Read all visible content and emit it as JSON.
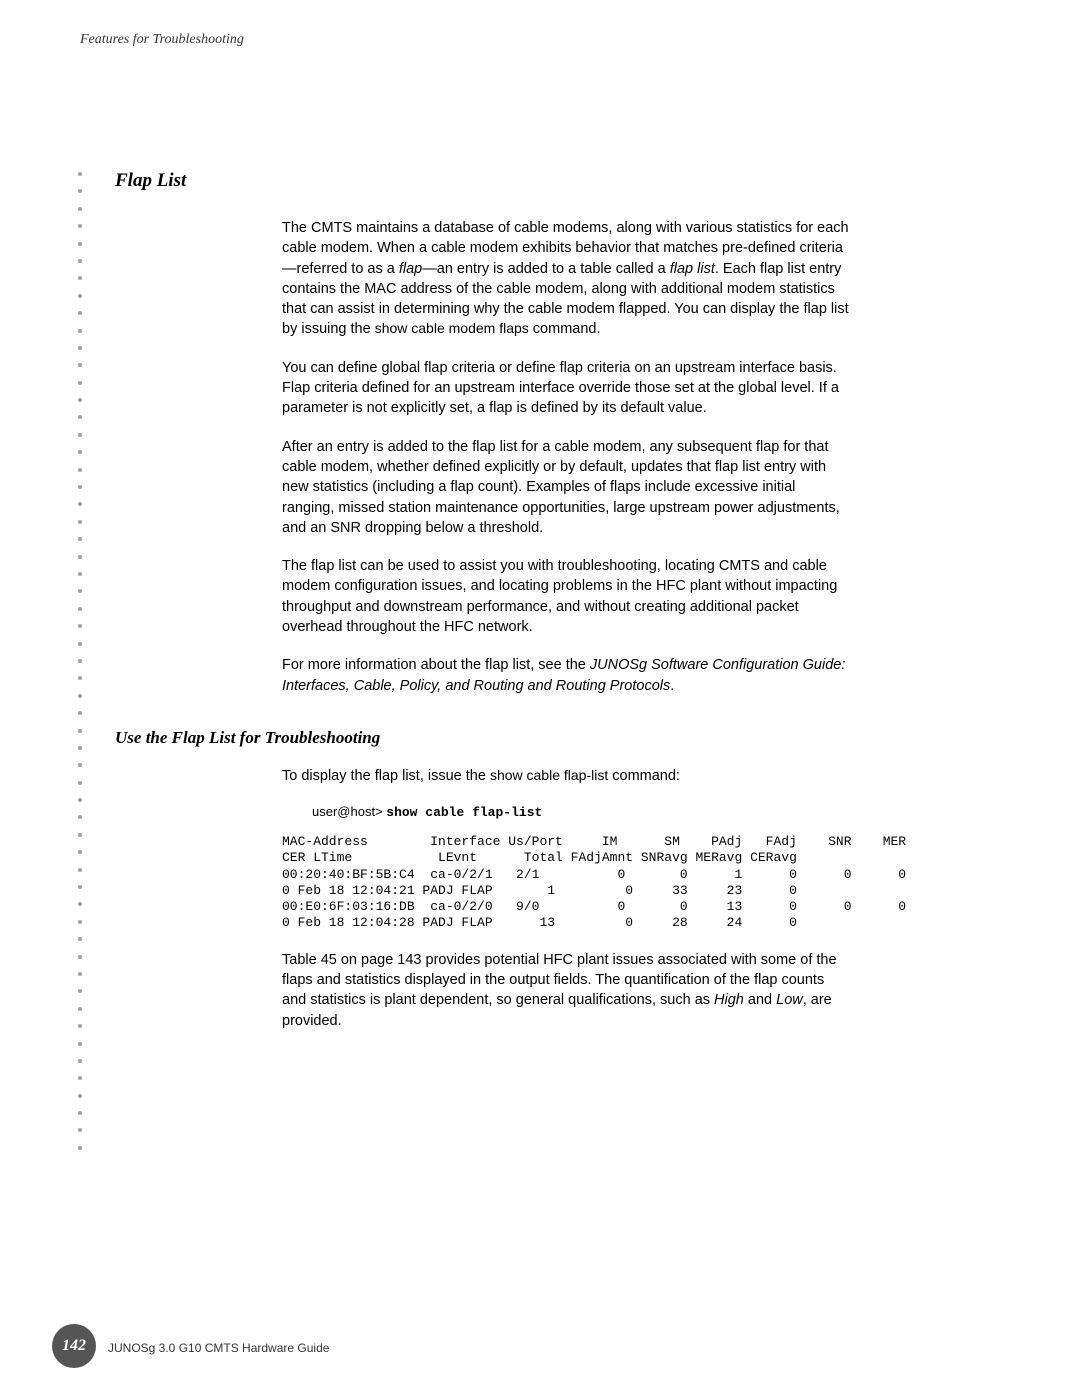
{
  "header": "Features for Troubleshooting",
  "section_title": "Flap List",
  "p1_a": "The CMTS maintains a database of cable modems, along with various statistics for each cable modem. When a cable modem exhibits behavior that matches pre-defined criteria—referred to as a ",
  "p1_flap": "flap",
  "p1_b": "—an entry is added to a table called a ",
  "p1_flaplist": "flap list",
  "p1_c": ". Each flap list entry contains the MAC address of the cable modem, along with additional modem statistics that can assist in determining why the cable modem flapped. You can display the flap list by issuing the ",
  "p1_cmd": "show cable modem flaps",
  "p1_d": " command.",
  "p2": "You can define global flap criteria or define flap criteria on an upstream interface basis. Flap criteria defined for an upstream interface override those set at the global level. If a parameter is not explicitly set, a flap is defined by its default value.",
  "p3": "After an entry is added to the flap list for a cable modem, any subsequent flap for that cable modem, whether defined explicitly or by default, updates that flap list entry with new statistics (including a flap count). Examples of flaps include excessive initial ranging, missed station maintenance opportunities, large upstream power adjustments, and an SNR dropping below a threshold.",
  "p4": "The flap list can be used to assist you with troubleshooting, locating CMTS and cable modem configuration issues, and locating problems in the HFC plant without impacting throughput and downstream performance, and without creating additional packet overhead throughout the HFC network.",
  "p5_a": "For more information about the flap list, see the ",
  "p5_ref": "JUNOSg Software Configuration Guide: Interfaces, Cable, Policy, and Routing and Routing Protocols",
  "p5_b": ".",
  "subsection_title": "Use the Flap List for Troubleshooting",
  "p6_a": "To display the flap list, issue the ",
  "p6_cmd": "show cable flap-list",
  "p6_b": " command:",
  "prompt": "user@host> ",
  "prompt_cmd": "show cable flap-list",
  "terminal": "MAC-Address        Interface Us/Port     IM      SM    PAdj   FAdj    SNR    MER\nCER LTime           LEvnt      Total FAdjAmnt SNRavg MERavg CERavg\n00:20:40:BF:5B:C4  ca-0/2/1   2/1          0       0      1      0      0      0\n0 Feb 18 12:04:21 PADJ FLAP       1         0     33     23      0\n00:E0:6F:03:16:DB  ca-0/2/0   9/0          0       0     13      0      0      0\n0 Feb 18 12:04:28 PADJ FLAP      13         0     28     24      0",
  "p7_a": "Table 45 on page 143 provides potential HFC plant issues associated with some of the flaps and statistics displayed in the output fields. The quantification of the flap counts and statistics is plant dependent, so general qualifications, such as ",
  "p7_high": "High",
  "p7_b": " and ",
  "p7_low": "Low",
  "p7_c": ", are provided.",
  "page_number": "142",
  "footer": "JUNOSg 3.0 G10 CMTS Hardware Guide",
  "dot_count": 57
}
